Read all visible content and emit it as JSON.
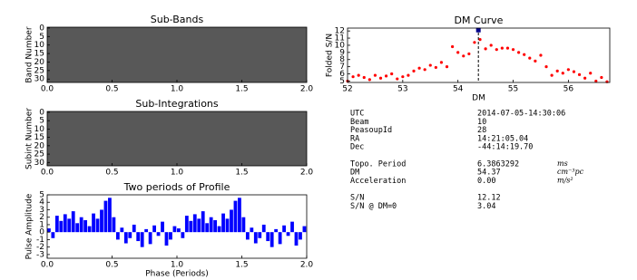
{
  "chart_data": [
    {
      "type": "image",
      "title": "Sub-Bands",
      "ylabel": "Band Number",
      "xlim": [
        0,
        2
      ],
      "xticks": [
        {
          "value": 0,
          "label": "0.0"
        },
        {
          "value": 0.5,
          "label": "0.5"
        },
        {
          "value": 1,
          "label": "1.0"
        },
        {
          "value": 1.5,
          "label": "1.5"
        },
        {
          "value": 2,
          "label": "2.0"
        }
      ],
      "ylim": [
        32,
        -0.5
      ],
      "yticks": [
        0,
        5,
        10,
        15,
        20,
        25,
        30
      ],
      "colormap": "gray"
    },
    {
      "type": "image",
      "title": "Sub-Integrations",
      "ylabel": "Subint Number",
      "xlim": [
        0,
        2
      ],
      "xticks": [
        {
          "value": 0,
          "label": "0.0"
        },
        {
          "value": 0.5,
          "label": "0.5"
        },
        {
          "value": 1,
          "label": "1.0"
        },
        {
          "value": 1.5,
          "label": "1.5"
        },
        {
          "value": 2,
          "label": "2.0"
        }
      ],
      "ylim": [
        32,
        -0.5
      ],
      "yticks": [
        0,
        5,
        10,
        15,
        20,
        25,
        30
      ],
      "colormap": "gray"
    },
    {
      "type": "bar",
      "title": "Two periods of Profile",
      "ylabel": "Pulse Amplitude",
      "xlabel": "Phase (Periods)",
      "color": "#0000ff",
      "xlim": [
        0,
        2
      ],
      "xticks": [
        {
          "value": 0,
          "label": "0.0"
        },
        {
          "value": 0.5,
          "label": "0.5"
        },
        {
          "value": 1,
          "label": "1.0"
        },
        {
          "value": 1.5,
          "label": "1.5"
        },
        {
          "value": 2,
          "label": "2.0"
        }
      ],
      "ylim": [
        -3.5,
        5
      ],
      "yticks": [
        -3,
        -2,
        -1,
        0,
        1,
        2,
        3,
        4,
        5
      ],
      "x": [
        0,
        0.03125,
        0.0625,
        0.09375,
        0.125,
        0.15625,
        0.1875,
        0.21875,
        0.25,
        0.28125,
        0.3125,
        0.34375,
        0.375,
        0.40625,
        0.4375,
        0.46875,
        0.5,
        0.53125,
        0.5625,
        0.59375,
        0.625,
        0.65625,
        0.6875,
        0.71875,
        0.75,
        0.78125,
        0.8125,
        0.84375,
        0.875,
        0.90625,
        0.9375,
        0.96875,
        1,
        1.03125,
        1.0625,
        1.09375,
        1.125,
        1.15625,
        1.1875,
        1.21875,
        1.25,
        1.28125,
        1.3125,
        1.34375,
        1.375,
        1.40625,
        1.4375,
        1.46875,
        1.5,
        1.53125,
        1.5625,
        1.59375,
        1.625,
        1.65625,
        1.6875,
        1.71875,
        1.75,
        1.78125,
        1.8125,
        1.84375,
        1.875,
        1.90625,
        1.9375,
        1.96875
      ],
      "values": [
        0.5,
        -0.8,
        2.2,
        1.5,
        2.4,
        1.8,
        2.8,
        1.2,
        2.0,
        1.6,
        0.8,
        2.5,
        1.8,
        3.0,
        4.2,
        4.6,
        2.0,
        -1.0,
        0.6,
        -1.5,
        -0.8,
        1.0,
        -1.2,
        -2.0,
        0.4,
        -1.6,
        0.9,
        -0.5,
        1.4,
        -1.8,
        -1.0,
        0.8,
        0.5,
        -0.8,
        2.2,
        1.5,
        2.4,
        1.8,
        2.8,
        1.2,
        2.0,
        1.6,
        0.8,
        2.5,
        1.8,
        3.0,
        4.2,
        4.6,
        2.0,
        -1.0,
        0.6,
        -1.5,
        -0.8,
        1.0,
        -1.2,
        -2.0,
        0.4,
        -1.6,
        0.9,
        -0.5,
        1.4,
        -1.8,
        -1.0,
        0.8
      ]
    },
    {
      "type": "scatter",
      "title": "DM Curve",
      "ylabel": "Folded S/N",
      "xlabel": "DM",
      "color": "#ff0000",
      "xlim": [
        52,
        56.75
      ],
      "xticks": [
        52,
        53,
        54,
        55,
        56
      ],
      "ylim": [
        4.8,
        12.4
      ],
      "yticks": [
        5,
        6,
        7,
        8,
        9,
        10,
        11,
        12
      ],
      "x": [
        52.0,
        52.1,
        52.2,
        52.3,
        52.4,
        52.5,
        52.6,
        52.7,
        52.8,
        52.9,
        53.0,
        53.1,
        53.2,
        53.3,
        53.4,
        53.5,
        53.6,
        53.7,
        53.8,
        53.9,
        54.0,
        54.1,
        54.2,
        54.3,
        54.4,
        54.5,
        54.6,
        54.7,
        54.8,
        54.9,
        55.0,
        55.1,
        55.2,
        55.3,
        55.4,
        55.5,
        55.6,
        55.7,
        55.8,
        55.9,
        56.0,
        56.1,
        56.2,
        56.3,
        56.4,
        56.5,
        56.6,
        56.7
      ],
      "values": [
        5.0,
        5.6,
        5.8,
        5.5,
        5.2,
        5.8,
        5.4,
        5.7,
        6.0,
        5.3,
        5.6,
        5.8,
        6.4,
        6.8,
        6.6,
        7.2,
        6.9,
        7.6,
        7.0,
        9.8,
        9.0,
        8.5,
        8.8,
        10.4,
        10.8,
        9.5,
        10.0,
        9.4,
        9.6,
        9.6,
        9.4,
        9.0,
        8.7,
        8.2,
        7.8,
        8.6,
        7.0,
        5.8,
        6.4,
        6.1,
        6.6,
        6.3,
        5.9,
        5.4,
        6.1,
        5.0,
        5.5,
        4.9
      ],
      "best": {
        "x": 54.37,
        "y": 12.12,
        "color": "#00008b"
      }
    }
  ],
  "info": {
    "groups": [
      [
        [
          "UTC",
          "2014-07-05-14:30:06"
        ],
        [
          "Beam",
          "10"
        ],
        [
          "PeasoupId",
          "28"
        ],
        [
          "RA",
          "14:21:05.04"
        ],
        [
          "Dec",
          "-44:14:19.70"
        ]
      ],
      [
        [
          "Topo. Period",
          "6.3863292",
          "ms"
        ],
        [
          "DM",
          "54.37",
          "cm⁻³pc"
        ],
        [
          "Acceleration",
          "0.00",
          "m/s²"
        ]
      ],
      [
        [
          "S/N",
          "12.12"
        ],
        [
          "S/N @ DM=0",
          "3.04"
        ]
      ]
    ]
  }
}
